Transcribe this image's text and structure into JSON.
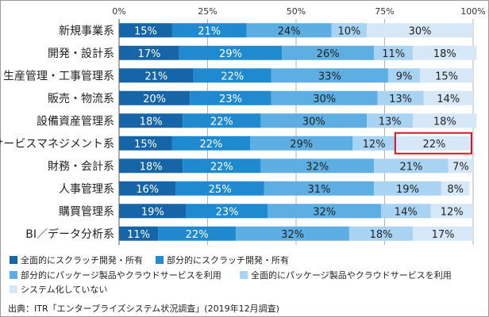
{
  "chart_data": {
    "type": "bar",
    "orientation": "horizontal-stacked-100",
    "xlim": [
      0,
      100
    ],
    "x_ticks": [
      "0%",
      "25%",
      "50%",
      "75%",
      "100%"
    ],
    "categories": [
      "新規事業系",
      "開発・設計系",
      "生産管理・工事管理系",
      "販売・物流系",
      "設備資産管理系",
      "サービスマネジメント系",
      "財務・会計系",
      "人事管理系",
      "購買管理系",
      "BI／データ分析系"
    ],
    "series": [
      {
        "name": "全面的にスクラッチ開発・所有",
        "color": "#1565a8",
        "values": [
          15,
          17,
          21,
          20,
          18,
          15,
          18,
          16,
          19,
          11
        ]
      },
      {
        "name": "部分的にスクラッチ開発・所有",
        "color": "#1f8ad0",
        "values": [
          21,
          29,
          22,
          23,
          22,
          22,
          22,
          25,
          23,
          22
        ]
      },
      {
        "name": "部分的にパッケージ製品やクラウドサービスを利用",
        "color": "#5daee2",
        "values": [
          24,
          26,
          33,
          30,
          30,
          29,
          32,
          31,
          32,
          32
        ]
      },
      {
        "name": "全面的にパッケージ製品やクラウドサービスを利用",
        "color": "#a9d3f2",
        "values": [
          10,
          11,
          9,
          13,
          13,
          12,
          21,
          19,
          14,
          18
        ]
      },
      {
        "name": "システム化していない",
        "color": "#d6e8f7",
        "values": [
          30,
          18,
          15,
          14,
          18,
          22,
          7,
          8,
          12,
          17
        ]
      }
    ],
    "highlight": {
      "category_index": 5,
      "series_index": 4,
      "color": "#d9141e"
    },
    "legend_position": "bottom"
  },
  "source": "出典：ITR「エンタープライズシステム状況調査」(2019年12月調査)"
}
